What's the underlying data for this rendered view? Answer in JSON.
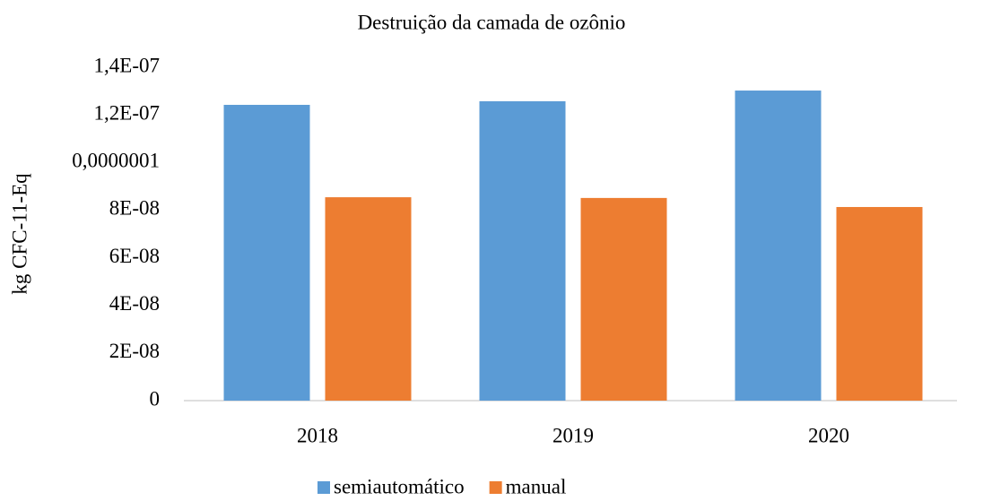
{
  "chart_data": {
    "type": "bar",
    "title": "Destruição da camada de ozônio",
    "y_label": "kg CFC-11-Eq",
    "categories": [
      "2018",
      "2019",
      "2020"
    ],
    "series": [
      {
        "name": "semiautomático",
        "color": "#5b9bd5",
        "values": [
          1.242e-07,
          1.257e-07,
          1.302e-07
        ]
      },
      {
        "name": "manual",
        "color": "#ed7d31",
        "values": [
          8.54e-08,
          8.51e-08,
          8.13e-08
        ]
      }
    ],
    "ylim": [
      0,
      1.4e-07
    ],
    "yticks": [
      0,
      {
        "value": 2e-08,
        "label": "2E-08"
      },
      {
        "value": 4e-08,
        "label": "4E-08"
      },
      {
        "value": 6e-08,
        "label": "6E-08"
      },
      {
        "value": 8e-08,
        "label": "8E-08"
      },
      {
        "value": 1e-07,
        "label": "0,0000001"
      },
      {
        "value": 1.2e-07,
        "label": "1,2E-07"
      },
      {
        "value": 1.4e-07,
        "label": "1,4E-07"
      }
    ],
    "grid": false,
    "legend": "bottom"
  }
}
